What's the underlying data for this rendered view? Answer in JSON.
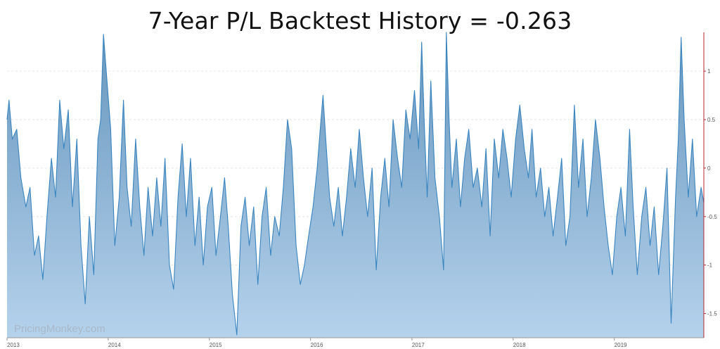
{
  "chart_data": {
    "type": "area",
    "title": "7-Year P/L Backtest History =  -0.263",
    "xlabel": "",
    "ylabel": "",
    "watermark": "PricingMonkey.com",
    "grid": true,
    "legend": "none",
    "colors": {
      "line": "#3a85c0",
      "fill_top": "#6796bd",
      "fill_bottom": "#b5d2ec",
      "axis": "#b0292e"
    },
    "xlim": [
      "2013-01-01",
      "2019-11-20"
    ],
    "ylim": [
      -1.75,
      1.4
    ],
    "x_ticks": [
      {
        "date": "2013-01-01",
        "label": "2013"
      },
      {
        "date": "2014-01-01",
        "label": "2014"
      },
      {
        "date": "2015-01-01",
        "label": "2015"
      },
      {
        "date": "2016-01-01",
        "label": "2016"
      },
      {
        "date": "2017-01-01",
        "label": "2017"
      },
      {
        "date": "2018-01-01",
        "label": "2018"
      },
      {
        "date": "2019-01-01",
        "label": "2019"
      }
    ],
    "y_ticks": [
      {
        "value": 1,
        "label": "1"
      },
      {
        "value": 0.5,
        "label": "0.5"
      },
      {
        "value": 0,
        "label": "0"
      },
      {
        "value": -0.5,
        "label": "-0.5"
      },
      {
        "value": -1,
        "label": "-1"
      },
      {
        "value": -1.5,
        "label": "-1.5"
      }
    ],
    "series": [
      {
        "values": [
          [
            "2013-01-01",
            0.5
          ],
          [
            "2013-01-08",
            0.7
          ],
          [
            "2013-01-20",
            0.3
          ],
          [
            "2013-02-05",
            0.4
          ],
          [
            "2013-02-20",
            -0.1
          ],
          [
            "2013-03-10",
            -0.4
          ],
          [
            "2013-03-25",
            -0.2
          ],
          [
            "2013-04-10",
            -0.9
          ],
          [
            "2013-04-25",
            -0.7
          ],
          [
            "2013-05-10",
            -1.15
          ],
          [
            "2013-05-25",
            -0.5
          ],
          [
            "2013-06-10",
            0.1
          ],
          [
            "2013-06-25",
            -0.3
          ],
          [
            "2013-07-10",
            0.7
          ],
          [
            "2013-07-25",
            0.2
          ],
          [
            "2013-08-10",
            0.6
          ],
          [
            "2013-08-25",
            -0.4
          ],
          [
            "2013-09-10",
            0.3
          ],
          [
            "2013-09-25",
            -0.8
          ],
          [
            "2013-10-10",
            -1.4
          ],
          [
            "2013-10-25",
            -0.5
          ],
          [
            "2013-11-10",
            -1.1
          ],
          [
            "2013-11-25",
            0.3
          ],
          [
            "2013-12-05",
            0.5
          ],
          [
            "2013-12-15",
            1.38
          ],
          [
            "2013-12-25",
            1.0
          ],
          [
            "2014-01-10",
            0.4
          ],
          [
            "2014-01-25",
            -0.8
          ],
          [
            "2014-02-10",
            -0.3
          ],
          [
            "2014-02-25",
            0.7
          ],
          [
            "2014-03-10",
            -0.2
          ],
          [
            "2014-03-25",
            -0.6
          ],
          [
            "2014-04-10",
            0.3
          ],
          [
            "2014-04-25",
            -0.4
          ],
          [
            "2014-05-10",
            -0.9
          ],
          [
            "2014-05-25",
            -0.2
          ],
          [
            "2014-06-10",
            -0.7
          ],
          [
            "2014-06-25",
            -0.1
          ],
          [
            "2014-07-10",
            -0.6
          ],
          [
            "2014-07-25",
            0.1
          ],
          [
            "2014-08-10",
            -1.0
          ],
          [
            "2014-08-25",
            -1.25
          ],
          [
            "2014-09-10",
            -0.3
          ],
          [
            "2014-09-25",
            0.25
          ],
          [
            "2014-10-10",
            -0.5
          ],
          [
            "2014-10-25",
            0.1
          ],
          [
            "2014-11-10",
            -0.8
          ],
          [
            "2014-11-25",
            -0.3
          ],
          [
            "2014-12-10",
            -1.0
          ],
          [
            "2014-12-25",
            -0.4
          ],
          [
            "2015-01-10",
            -0.2
          ],
          [
            "2015-01-25",
            -0.9
          ],
          [
            "2015-02-10",
            -0.5
          ],
          [
            "2015-02-25",
            -0.1
          ],
          [
            "2015-03-10",
            -0.6
          ],
          [
            "2015-03-25",
            -1.3
          ],
          [
            "2015-04-10",
            -1.72
          ],
          [
            "2015-04-25",
            -0.6
          ],
          [
            "2015-05-10",
            -0.3
          ],
          [
            "2015-05-25",
            -0.8
          ],
          [
            "2015-06-10",
            -0.4
          ],
          [
            "2015-06-25",
            -1.2
          ],
          [
            "2015-07-10",
            -0.5
          ],
          [
            "2015-07-25",
            -0.2
          ],
          [
            "2015-08-10",
            -0.9
          ],
          [
            "2015-08-25",
            -0.5
          ],
          [
            "2015-09-10",
            -0.7
          ],
          [
            "2015-09-25",
            -0.2
          ],
          [
            "2015-10-10",
            0.5
          ],
          [
            "2015-10-25",
            0.2
          ],
          [
            "2015-11-10",
            -0.8
          ],
          [
            "2015-11-25",
            -1.2
          ],
          [
            "2015-12-10",
            -1.0
          ],
          [
            "2015-12-25",
            -0.7
          ],
          [
            "2016-01-10",
            -0.4
          ],
          [
            "2016-01-25",
            0.0
          ],
          [
            "2016-02-05",
            0.4
          ],
          [
            "2016-02-15",
            0.75
          ],
          [
            "2016-02-25",
            0.3
          ],
          [
            "2016-03-10",
            -0.3
          ],
          [
            "2016-03-25",
            -0.6
          ],
          [
            "2016-04-10",
            -0.2
          ],
          [
            "2016-04-25",
            -0.7
          ],
          [
            "2016-05-10",
            -0.3
          ],
          [
            "2016-05-25",
            0.2
          ],
          [
            "2016-06-10",
            -0.2
          ],
          [
            "2016-06-25",
            0.4
          ],
          [
            "2016-07-10",
            -0.1
          ],
          [
            "2016-07-25",
            -0.5
          ],
          [
            "2016-08-10",
            0.0
          ],
          [
            "2016-08-25",
            -1.05
          ],
          [
            "2016-09-10",
            -0.3
          ],
          [
            "2016-09-25",
            0.1
          ],
          [
            "2016-10-10",
            -0.4
          ],
          [
            "2016-10-25",
            0.5
          ],
          [
            "2016-11-10",
            0.1
          ],
          [
            "2016-11-25",
            -0.2
          ],
          [
            "2016-12-10",
            0.6
          ],
          [
            "2016-12-25",
            0.3
          ],
          [
            "2017-01-10",
            0.8
          ],
          [
            "2017-01-25",
            0.2
          ],
          [
            "2017-02-05",
            1.3
          ],
          [
            "2017-02-15",
            0.4
          ],
          [
            "2017-02-25",
            -0.3
          ],
          [
            "2017-03-10",
            0.9
          ],
          [
            "2017-03-25",
            -0.1
          ],
          [
            "2017-04-10",
            -0.5
          ],
          [
            "2017-04-25",
            -1.05
          ],
          [
            "2017-05-05",
            1.4
          ],
          [
            "2017-05-15",
            0.5
          ],
          [
            "2017-05-25",
            -0.2
          ],
          [
            "2017-06-10",
            0.3
          ],
          [
            "2017-06-25",
            -0.4
          ],
          [
            "2017-07-10",
            0.1
          ],
          [
            "2017-07-25",
            0.4
          ],
          [
            "2017-08-10",
            -0.2
          ],
          [
            "2017-08-25",
            0.0
          ],
          [
            "2017-09-10",
            -0.4
          ],
          [
            "2017-09-25",
            0.2
          ],
          [
            "2017-10-10",
            -0.7
          ],
          [
            "2017-10-25",
            0.3
          ],
          [
            "2017-11-10",
            -0.1
          ],
          [
            "2017-11-25",
            0.4
          ],
          [
            "2017-12-10",
            0.1
          ],
          [
            "2017-12-25",
            -0.3
          ],
          [
            "2018-01-10",
            0.3
          ],
          [
            "2018-01-25",
            0.65
          ],
          [
            "2018-02-10",
            0.2
          ],
          [
            "2018-02-25",
            -0.1
          ],
          [
            "2018-03-10",
            0.4
          ],
          [
            "2018-03-25",
            -0.3
          ],
          [
            "2018-04-10",
            0.0
          ],
          [
            "2018-04-25",
            -0.5
          ],
          [
            "2018-05-10",
            -0.2
          ],
          [
            "2018-05-25",
            -0.7
          ],
          [
            "2018-06-10",
            -0.3
          ],
          [
            "2018-06-25",
            0.1
          ],
          [
            "2018-07-10",
            -0.8
          ],
          [
            "2018-07-25",
            -0.5
          ],
          [
            "2018-08-10",
            0.65
          ],
          [
            "2018-08-25",
            -0.2
          ],
          [
            "2018-09-10",
            0.3
          ],
          [
            "2018-09-25",
            -0.5
          ],
          [
            "2018-10-10",
            -0.1
          ],
          [
            "2018-10-25",
            0.5
          ],
          [
            "2018-11-10",
            0.1
          ],
          [
            "2018-11-25",
            -0.4
          ],
          [
            "2018-12-10",
            -0.8
          ],
          [
            "2018-12-25",
            -1.1
          ],
          [
            "2019-01-10",
            -0.5
          ],
          [
            "2019-01-25",
            -0.2
          ],
          [
            "2019-02-10",
            -0.7
          ],
          [
            "2019-02-25",
            0.4
          ],
          [
            "2019-03-10",
            -0.4
          ],
          [
            "2019-03-25",
            -1.1
          ],
          [
            "2019-04-10",
            -0.5
          ],
          [
            "2019-04-25",
            -0.2
          ],
          [
            "2019-05-10",
            -0.8
          ],
          [
            "2019-05-25",
            -0.4
          ],
          [
            "2019-06-10",
            -1.1
          ],
          [
            "2019-06-25",
            -0.6
          ],
          [
            "2019-07-10",
            0.0
          ],
          [
            "2019-07-25",
            -1.6
          ],
          [
            "2019-08-10",
            -0.3
          ],
          [
            "2019-08-20",
            0.3
          ],
          [
            "2019-08-30",
            1.35
          ],
          [
            "2019-09-10",
            0.5
          ],
          [
            "2019-09-25",
            -0.3
          ],
          [
            "2019-10-10",
            0.3
          ],
          [
            "2019-10-25",
            -0.5
          ],
          [
            "2019-11-10",
            -0.2
          ],
          [
            "2019-11-20",
            -0.36
          ]
        ]
      }
    ]
  }
}
